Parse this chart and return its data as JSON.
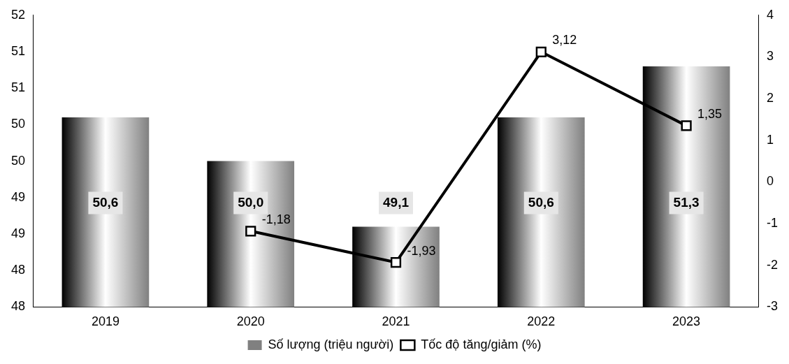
{
  "chart_data": {
    "type": "bar",
    "categories": [
      "2019",
      "2020",
      "2021",
      "2022",
      "2023"
    ],
    "series": [
      {
        "name": "Số lượng (triệu người)",
        "color": "#808080",
        "values": [
          50.6,
          50.0,
          49.1,
          50.6,
          51.3
        ],
        "value_labels": [
          "50,6",
          "50,0",
          "49,1",
          "50,6",
          "51,3"
        ]
      },
      {
        "name": "Tốc độ tăng/giảm (%)",
        "type": "line",
        "axis": "y2",
        "color": "#000000",
        "marker": "square",
        "values": [
          null,
          -1.18,
          -1.93,
          3.12,
          1.35
        ],
        "value_labels": [
          null,
          "-1,18",
          "-1,93",
          "3,12",
          "1,35"
        ]
      }
    ],
    "ylim": [
      48,
      52
    ],
    "yticks": [
      48,
      {
        "value": 48.5,
        "label": "48"
      },
      49,
      {
        "value": 49.5,
        "label": "49"
      },
      50,
      {
        "value": 50.5,
        "label": "50"
      },
      51,
      {
        "value": 51.5,
        "label": "51"
      },
      52
    ],
    "y2lim": [
      -3,
      4
    ],
    "y2ticks": [
      -3,
      -2,
      -1,
      0,
      1,
      2,
      3,
      4
    ],
    "grid": false,
    "legend": "bottom"
  }
}
